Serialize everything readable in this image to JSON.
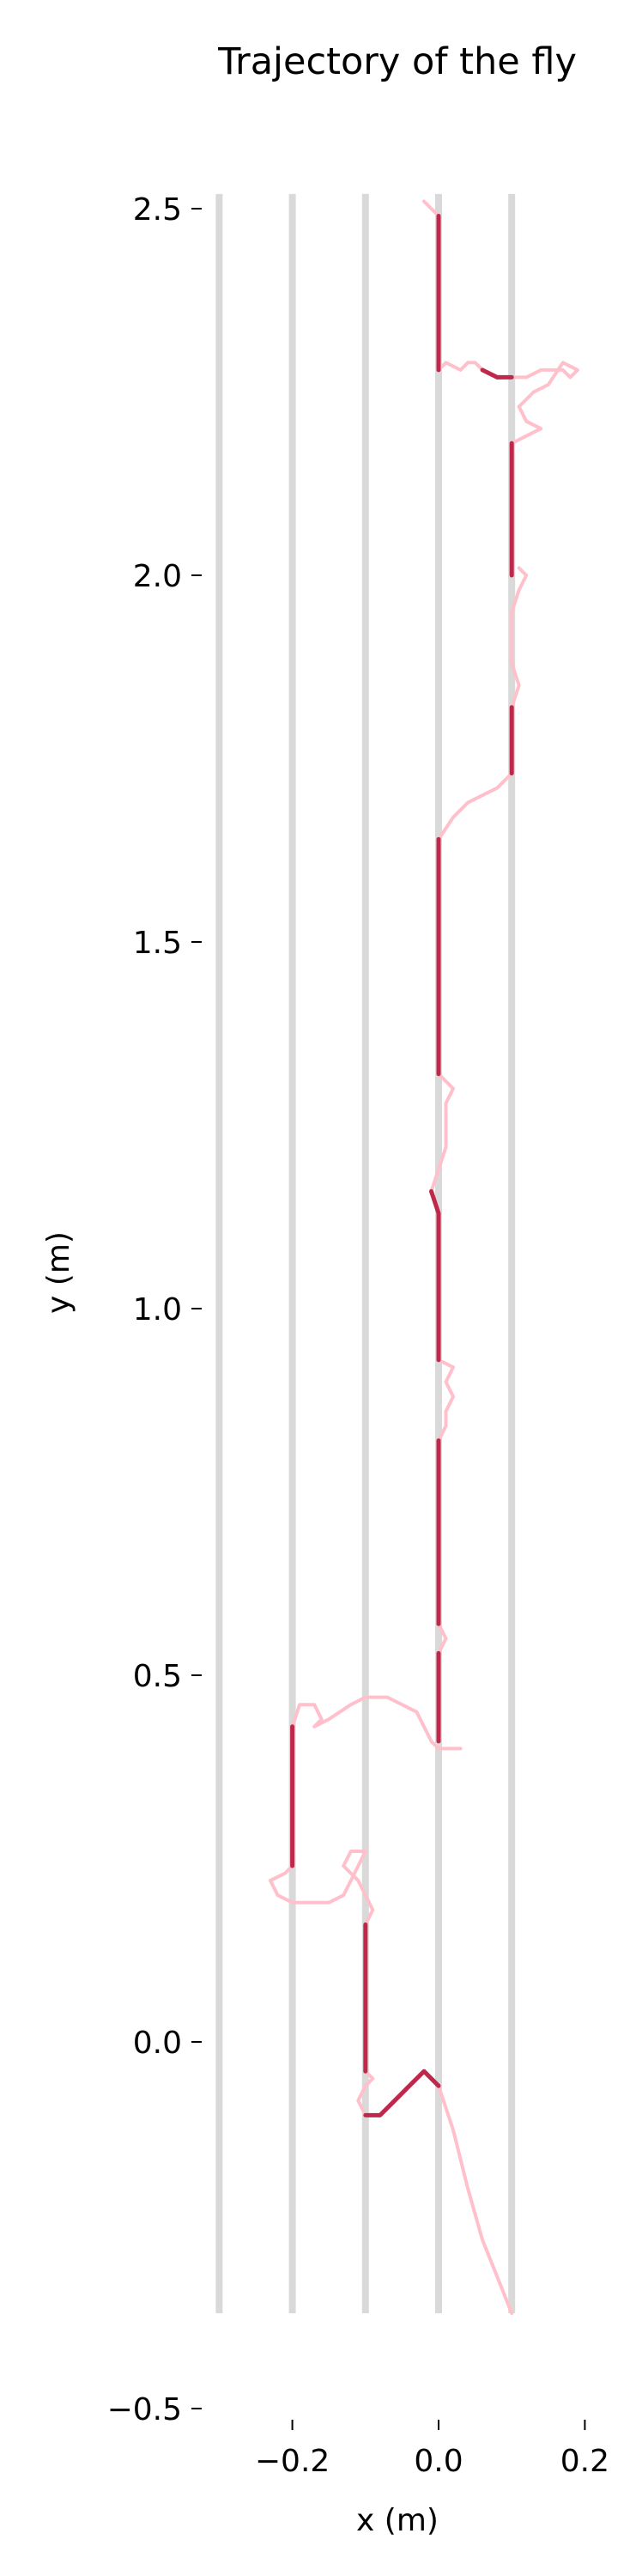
{
  "chart_data": {
    "type": "line",
    "title": "Trajectory of the fly",
    "xlabel": "x (m)",
    "ylabel": "y (m)",
    "xlim": [
      -0.32,
      0.22
    ],
    "ylim": [
      -0.5,
      2.55
    ],
    "xticks": [
      -0.2,
      0.0,
      0.2
    ],
    "xtick_labels": [
      "−0.2",
      "0.0",
      "0.2"
    ],
    "yticks": [
      -0.5,
      0.0,
      0.5,
      1.0,
      1.5,
      2.0,
      2.5
    ],
    "ytick_labels": [
      "−0.5",
      "0.0",
      "0.5",
      "1.0",
      "1.5",
      "2.0",
      "2.5"
    ],
    "grid": false,
    "vertical_lines": {
      "x": [
        -0.3,
        -0.2,
        -0.1,
        0.0,
        0.1
      ],
      "y_range": [
        -0.37,
        2.52
      ],
      "color": "#d9d9d9"
    },
    "colors": {
      "walking": "#c0284b",
      "flying": "#ffc0cb"
    },
    "segments": [
      {
        "state": "flying",
        "points": [
          [
            0.1,
            -0.37
          ],
          [
            0.08,
            -0.32
          ],
          [
            0.06,
            -0.27
          ],
          [
            0.04,
            -0.2
          ],
          [
            0.02,
            -0.12
          ],
          [
            0.0,
            -0.06
          ]
        ]
      },
      {
        "state": "walking",
        "points": [
          [
            0.0,
            -0.06
          ],
          [
            -0.01,
            -0.05
          ],
          [
            -0.02,
            -0.04
          ],
          [
            -0.04,
            -0.06
          ],
          [
            -0.06,
            -0.08
          ],
          [
            -0.08,
            -0.1
          ],
          [
            -0.1,
            -0.1
          ]
        ]
      },
      {
        "state": "flying",
        "points": [
          [
            -0.1,
            -0.1
          ],
          [
            -0.11,
            -0.08
          ],
          [
            -0.1,
            -0.06
          ],
          [
            -0.09,
            -0.05
          ],
          [
            -0.1,
            -0.04
          ]
        ]
      },
      {
        "state": "walking",
        "points": [
          [
            -0.1,
            -0.04
          ],
          [
            -0.1,
            0.0
          ],
          [
            -0.1,
            0.04
          ],
          [
            -0.1,
            0.08
          ],
          [
            -0.1,
            0.12
          ],
          [
            -0.1,
            0.16
          ]
        ]
      },
      {
        "state": "flying",
        "points": [
          [
            -0.1,
            0.16
          ],
          [
            -0.09,
            0.18
          ],
          [
            -0.1,
            0.2
          ],
          [
            -0.11,
            0.22
          ],
          [
            -0.13,
            0.24
          ],
          [
            -0.12,
            0.26
          ],
          [
            -0.1,
            0.26
          ]
        ]
      },
      {
        "state": "flying",
        "points": [
          [
            -0.1,
            0.26
          ],
          [
            -0.12,
            0.22
          ],
          [
            -0.13,
            0.2
          ],
          [
            -0.15,
            0.19
          ],
          [
            -0.18,
            0.19
          ],
          [
            -0.2,
            0.19
          ]
        ]
      },
      {
        "state": "flying",
        "points": [
          [
            -0.2,
            0.19
          ],
          [
            -0.22,
            0.2
          ],
          [
            -0.23,
            0.22
          ],
          [
            -0.21,
            0.23
          ],
          [
            -0.2,
            0.24
          ]
        ]
      },
      {
        "state": "walking",
        "points": [
          [
            -0.2,
            0.24
          ],
          [
            -0.2,
            0.28
          ],
          [
            -0.2,
            0.32
          ],
          [
            -0.2,
            0.36
          ],
          [
            -0.2,
            0.4
          ],
          [
            -0.2,
            0.43
          ]
        ]
      },
      {
        "state": "flying",
        "points": [
          [
            -0.2,
            0.43
          ],
          [
            -0.19,
            0.46
          ],
          [
            -0.17,
            0.46
          ],
          [
            -0.16,
            0.44
          ],
          [
            -0.17,
            0.43
          ],
          [
            -0.15,
            0.44
          ],
          [
            -0.12,
            0.46
          ],
          [
            -0.1,
            0.47
          ],
          [
            -0.07,
            0.47
          ],
          [
            -0.05,
            0.46
          ],
          [
            -0.03,
            0.45
          ],
          [
            -0.02,
            0.43
          ],
          [
            -0.01,
            0.41
          ],
          [
            0.0,
            0.4
          ],
          [
            0.02,
            0.4
          ],
          [
            0.03,
            0.4
          ]
        ]
      },
      {
        "state": "walking",
        "points": [
          [
            0.0,
            0.41
          ],
          [
            0.0,
            0.44
          ],
          [
            0.0,
            0.47
          ],
          [
            0.0,
            0.5
          ],
          [
            0.0,
            0.53
          ]
        ]
      },
      {
        "state": "flying",
        "points": [
          [
            0.0,
            0.53
          ],
          [
            0.01,
            0.55
          ],
          [
            0.0,
            0.57
          ]
        ]
      },
      {
        "state": "walking",
        "points": [
          [
            0.0,
            0.57
          ],
          [
            0.0,
            0.62
          ],
          [
            0.0,
            0.66
          ],
          [
            0.0,
            0.7
          ],
          [
            0.0,
            0.74
          ],
          [
            0.0,
            0.78
          ],
          [
            0.0,
            0.82
          ]
        ]
      },
      {
        "state": "flying",
        "points": [
          [
            0.0,
            0.82
          ],
          [
            0.01,
            0.84
          ],
          [
            0.01,
            0.86
          ],
          [
            0.02,
            0.88
          ],
          [
            0.01,
            0.9
          ],
          [
            0.02,
            0.92
          ],
          [
            0.0,
            0.93
          ]
        ]
      },
      {
        "state": "walking",
        "points": [
          [
            0.0,
            0.93
          ],
          [
            0.0,
            0.98
          ],
          [
            0.0,
            1.03
          ],
          [
            0.0,
            1.08
          ],
          [
            0.0,
            1.13
          ],
          [
            -0.01,
            1.16
          ]
        ]
      },
      {
        "state": "flying",
        "points": [
          [
            -0.01,
            1.16
          ],
          [
            0.0,
            1.19
          ],
          [
            0.01,
            1.22
          ],
          [
            0.01,
            1.25
          ],
          [
            0.01,
            1.28
          ],
          [
            0.02,
            1.3
          ],
          [
            0.0,
            1.32
          ]
        ]
      },
      {
        "state": "walking",
        "points": [
          [
            0.0,
            1.32
          ],
          [
            0.0,
            1.38
          ],
          [
            0.0,
            1.44
          ],
          [
            0.0,
            1.5
          ],
          [
            0.0,
            1.56
          ],
          [
            0.0,
            1.62
          ],
          [
            0.0,
            1.64
          ]
        ]
      },
      {
        "state": "flying",
        "points": [
          [
            0.0,
            1.64
          ],
          [
            0.02,
            1.67
          ],
          [
            0.04,
            1.69
          ],
          [
            0.06,
            1.7
          ],
          [
            0.08,
            1.71
          ],
          [
            0.1,
            1.73
          ]
        ]
      },
      {
        "state": "walking",
        "points": [
          [
            0.1,
            1.73
          ],
          [
            0.1,
            1.78
          ],
          [
            0.1,
            1.82
          ]
        ]
      },
      {
        "state": "flying",
        "points": [
          [
            0.1,
            1.82
          ],
          [
            0.11,
            1.85
          ],
          [
            0.1,
            1.88
          ],
          [
            0.1,
            1.92
          ],
          [
            0.1,
            1.95
          ],
          [
            0.11,
            1.98
          ],
          [
            0.12,
            2.0
          ],
          [
            0.11,
            2.01
          ]
        ]
      },
      {
        "state": "walking",
        "points": [
          [
            0.1,
            2.0
          ],
          [
            0.1,
            2.05
          ],
          [
            0.1,
            2.1
          ],
          [
            0.1,
            2.15
          ],
          [
            0.1,
            2.18
          ]
        ]
      },
      {
        "state": "flying",
        "points": [
          [
            0.1,
            2.18
          ],
          [
            0.12,
            2.19
          ],
          [
            0.14,
            2.2
          ],
          [
            0.12,
            2.21
          ],
          [
            0.11,
            2.23
          ],
          [
            0.13,
            2.25
          ],
          [
            0.15,
            2.26
          ],
          [
            0.17,
            2.29
          ],
          [
            0.19,
            2.28
          ],
          [
            0.18,
            2.27
          ],
          [
            0.17,
            2.28
          ],
          [
            0.14,
            2.28
          ],
          [
            0.12,
            2.27
          ],
          [
            0.1,
            2.27
          ]
        ]
      },
      {
        "state": "walking",
        "points": [
          [
            0.1,
            2.27
          ],
          [
            0.08,
            2.27
          ],
          [
            0.06,
            2.28
          ]
        ]
      },
      {
        "state": "flying",
        "points": [
          [
            0.06,
            2.28
          ],
          [
            0.05,
            2.29
          ],
          [
            0.04,
            2.29
          ],
          [
            0.03,
            2.28
          ],
          [
            0.01,
            2.29
          ],
          [
            0.0,
            2.28
          ]
        ]
      },
      {
        "state": "walking",
        "points": [
          [
            0.0,
            2.28
          ],
          [
            0.0,
            2.33
          ],
          [
            0.0,
            2.38
          ],
          [
            0.0,
            2.42
          ],
          [
            0.0,
            2.46
          ],
          [
            0.0,
            2.49
          ]
        ]
      },
      {
        "state": "flying",
        "points": [
          [
            0.0,
            2.49
          ],
          [
            -0.01,
            2.5
          ],
          [
            -0.02,
            2.51
          ]
        ]
      }
    ]
  }
}
